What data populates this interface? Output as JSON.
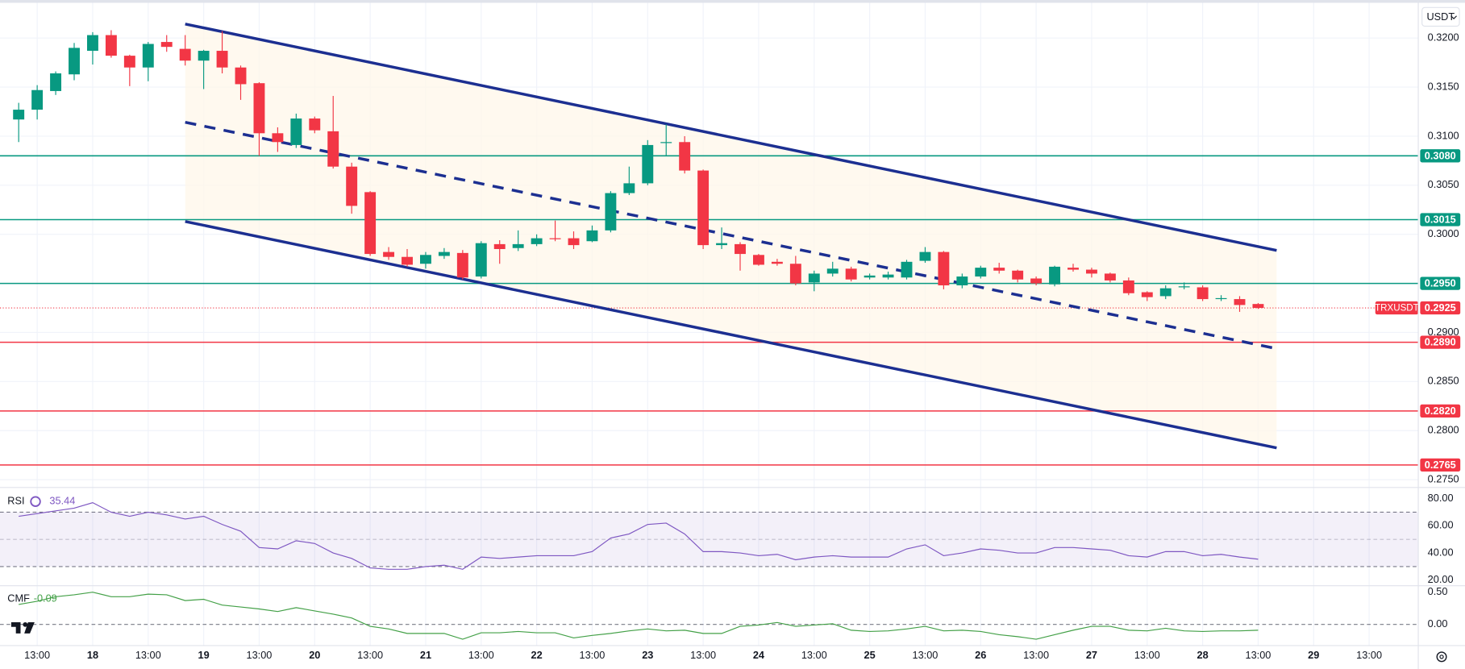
{
  "chart_data": [
    {
      "type": "candlestick",
      "symbol": "TRXUSDT",
      "currency": "USDT",
      "up_color": "#089981",
      "down_color": "#f23645",
      "grid": true,
      "categories": [
        null,
        "13:00",
        null,
        null,
        "18",
        null,
        null,
        "13:00",
        null,
        null,
        "19",
        null,
        null,
        "13:00",
        null,
        null,
        "20",
        null,
        null,
        "13:00",
        null,
        null,
        "21",
        null,
        null,
        "13:00",
        null,
        null,
        "22",
        null,
        null,
        "13:00",
        null,
        null,
        "23",
        null,
        null,
        "13:00",
        null,
        null,
        "24",
        null,
        null,
        "13:00",
        null,
        null,
        "25",
        null,
        null,
        "13:00",
        null,
        null,
        "26",
        null,
        null,
        "13:00",
        null,
        null,
        "27",
        null,
        null,
        "13:00",
        null,
        null,
        "28",
        null,
        null,
        "13:00",
        null,
        null,
        "29",
        null,
        null,
        "13:00"
      ],
      "open": [
        0.3117,
        0.3127,
        0.3146,
        0.3163,
        0.3187,
        0.3203,
        0.3182,
        0.317,
        0.3196,
        0.3189,
        0.3177,
        0.3187,
        0.317,
        0.3154,
        0.3103,
        0.3091,
        0.3118,
        0.3105,
        0.3069,
        0.3043,
        0.2982,
        0.2977,
        0.297,
        0.2978,
        0.2981,
        0.2957,
        0.299,
        0.2986,
        0.299,
        0.2996,
        0.2996,
        0.2993,
        0.3004,
        0.3042,
        0.3052,
        0.3093,
        0.3094,
        0.3065,
        0.2989,
        0.299,
        0.2979,
        0.2972,
        0.297,
        0.2951,
        0.296,
        0.2965,
        0.2956,
        0.2956,
        0.2956,
        0.2973,
        0.2982,
        0.2948,
        0.2957,
        0.2966,
        0.2963,
        0.2955,
        0.2949,
        0.2966,
        0.2964,
        0.296,
        0.2953,
        0.2941,
        0.2937,
        0.2946,
        0.2946,
        0.2934,
        0.2934,
        0.2929,
        null,
        null,
        null,
        null,
        null,
        null
      ],
      "high": [
        0.3134,
        0.3152,
        0.3166,
        0.3195,
        0.3206,
        0.3208,
        0.3183,
        0.3196,
        0.3203,
        0.3203,
        0.3188,
        0.3207,
        0.3172,
        0.3155,
        0.3109,
        0.3123,
        0.312,
        0.3141,
        0.3073,
        0.3044,
        0.2987,
        0.2985,
        0.2982,
        0.2986,
        0.2984,
        0.2993,
        0.2994,
        0.3004,
        0.3,
        0.3014,
        0.3003,
        0.3009,
        0.3044,
        0.3069,
        0.3096,
        0.3112,
        0.31,
        0.3066,
        0.3007,
        0.2992,
        0.298,
        0.2975,
        0.2978,
        0.2963,
        0.2972,
        0.2967,
        0.296,
        0.2962,
        0.2974,
        0.2987,
        0.2983,
        0.296,
        0.2968,
        0.2971,
        0.2964,
        0.2957,
        0.2968,
        0.297,
        0.2966,
        0.2961,
        0.2956,
        0.2942,
        0.2948,
        0.2951,
        0.2948,
        0.2938,
        0.2937,
        0.293,
        null,
        null,
        null,
        null,
        null,
        null
      ],
      "low": [
        0.3094,
        0.3117,
        0.3142,
        0.3157,
        0.3173,
        0.318,
        0.3151,
        0.3156,
        0.3186,
        0.3172,
        0.3148,
        0.3164,
        0.3137,
        0.308,
        0.3084,
        0.3088,
        0.3103,
        0.3067,
        0.3021,
        0.2978,
        0.2974,
        0.2967,
        0.2965,
        0.2975,
        0.2954,
        0.2955,
        0.297,
        0.2983,
        0.2988,
        0.2993,
        0.2985,
        0.2992,
        0.3002,
        0.304,
        0.305,
        0.308,
        0.3062,
        0.2985,
        0.2985,
        0.2963,
        0.2968,
        0.2968,
        0.2948,
        0.2942,
        0.2957,
        0.2952,
        0.2954,
        0.2954,
        0.2954,
        0.2971,
        0.2944,
        0.2945,
        0.2955,
        0.296,
        0.2951,
        0.2948,
        0.2947,
        0.2962,
        0.2956,
        0.2951,
        0.2938,
        0.2932,
        0.2934,
        0.2944,
        0.2932,
        0.2932,
        0.2921,
        0.2924,
        null,
        null,
        null,
        null,
        null,
        null
      ],
      "close": [
        0.3127,
        0.3147,
        0.3164,
        0.319,
        0.3203,
        0.3182,
        0.317,
        0.3194,
        0.3191,
        0.3177,
        0.3187,
        0.317,
        0.3153,
        0.3103,
        0.3094,
        0.3118,
        0.3106,
        0.3069,
        0.3029,
        0.298,
        0.2977,
        0.2969,
        0.2979,
        0.2982,
        0.2956,
        0.2991,
        0.2985,
        0.299,
        0.2996,
        0.2995,
        0.2989,
        0.3004,
        0.3042,
        0.3052,
        0.3091,
        0.3094,
        0.3065,
        0.2989,
        0.2991,
        0.298,
        0.2969,
        0.297,
        0.295,
        0.296,
        0.2965,
        0.2954,
        0.2958,
        0.2959,
        0.2972,
        0.2982,
        0.2948,
        0.2957,
        0.2966,
        0.2963,
        0.2954,
        0.295,
        0.2967,
        0.2964,
        0.296,
        0.2953,
        0.294,
        0.2936,
        0.2945,
        0.2947,
        0.2934,
        0.2935,
        0.2928,
        0.2925,
        null,
        null,
        null,
        null,
        null,
        null
      ],
      "ylim": [
        0.2743,
        0.3234
      ],
      "yticks": [
        {
          "value": 0.32,
          "label": "0.3200"
        },
        {
          "value": 0.315,
          "label": "0.3150"
        },
        {
          "value": 0.31,
          "label": "0.3100"
        },
        {
          "value": 0.305,
          "label": "0.3050"
        },
        {
          "value": 0.3,
          "label": "0.3000"
        },
        {
          "value": 0.29,
          "label": "0.2900"
        },
        {
          "value": 0.285,
          "label": "0.2850"
        },
        {
          "value": 0.28,
          "label": "0.2800"
        },
        {
          "value": 0.275,
          "label": "0.2750"
        }
      ],
      "levels": [
        {
          "value": 0.308,
          "label": "0.3080",
          "color": "#089981"
        },
        {
          "value": 0.3015,
          "color": "#089981"
        },
        {
          "value": 0.295,
          "label": "0.2950",
          "color": "#089981"
        },
        {
          "value": 0.289,
          "label": "0.2890",
          "color": "#f23645"
        },
        {
          "value": 0.282,
          "label": "0.2820",
          "color": "#f23645"
        },
        {
          "value": 0.2765,
          "color": "#f23645"
        }
      ],
      "channel": {
        "color": "#1c2f91",
        "upper": {
          "x": [
            9,
            68
          ],
          "y": [
            0.32143,
            0.29836
          ]
        },
        "mid": {
          "x": [
            9,
            68
          ],
          "y": [
            0.31142,
            0.28835
          ]
        },
        "lower": {
          "x": [
            9,
            68
          ],
          "y": [
            0.30131,
            0.27824
          ]
        }
      }
    },
    {
      "type": "line",
      "title": "RSI",
      "color": "#7e57c2",
      "values": [
        67,
        69,
        71,
        73,
        77,
        70,
        67,
        70,
        68,
        65,
        67,
        61,
        56,
        44,
        43,
        49,
        47,
        40,
        36,
        29,
        28,
        28,
        30,
        31,
        28,
        37,
        36,
        37,
        38,
        38,
        38,
        41,
        51,
        54,
        61,
        62,
        54,
        41,
        41,
        40,
        38,
        39,
        35,
        37,
        38,
        37,
        37,
        37,
        43,
        46,
        38,
        40,
        43,
        42,
        40,
        40,
        44,
        44,
        43,
        42,
        38,
        37,
        41,
        41,
        38,
        39,
        37,
        35.44
      ],
      "ylim": [
        16.6,
        86.8
      ],
      "yticks": [
        {
          "value": 80,
          "label": "80.00"
        },
        {
          "value": 60,
          "label": "60.00"
        },
        {
          "value": 40,
          "label": "40.00"
        },
        {
          "value": 20,
          "label": "20.00"
        }
      ],
      "bands": [
        30,
        70
      ],
      "midline": 50
    },
    {
      "type": "line",
      "title": "CMF",
      "color": "#43a047",
      "values": [
        0.31,
        0.36,
        0.43,
        0.46,
        0.5,
        0.43,
        0.43,
        0.47,
        0.46,
        0.37,
        0.39,
        0.3,
        0.27,
        0.24,
        0.2,
        0.26,
        0.21,
        0.16,
        0.1,
        -0.03,
        -0.07,
        -0.14,
        -0.14,
        -0.14,
        -0.23,
        -0.13,
        -0.13,
        -0.11,
        -0.13,
        -0.13,
        -0.21,
        -0.17,
        -0.14,
        -0.1,
        -0.07,
        -0.1,
        -0.09,
        -0.14,
        -0.14,
        -0.03,
        -0.01,
        0.03,
        -0.03,
        -0.01,
        0.01,
        -0.09,
        -0.11,
        -0.1,
        -0.07,
        -0.03,
        -0.1,
        -0.09,
        -0.11,
        -0.16,
        -0.19,
        -0.23,
        -0.16,
        -0.09,
        -0.03,
        -0.03,
        -0.09,
        -0.1,
        -0.06,
        -0.1,
        -0.11,
        -0.1,
        -0.1,
        -0.09
      ],
      "ylim": [
        -0.329,
        0.586
      ],
      "yticks": [
        {
          "value": 0.5,
          "label": "0.50"
        },
        {
          "value": 0,
          "label": "0.00"
        }
      ],
      "zero_line": 0
    }
  ]
}
